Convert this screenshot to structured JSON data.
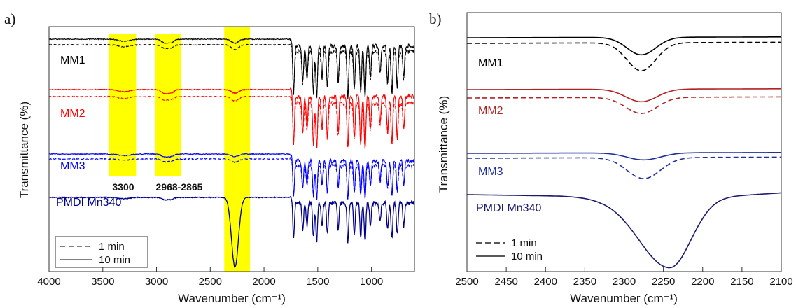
{
  "chart_data": [
    {
      "panel": "a)",
      "type": "line",
      "xlabel": "Wavenumber (cm⁻¹)",
      "ylabel": "Transmittance (%)",
      "xlim": [
        4000,
        600
      ],
      "x_reversed": true,
      "xticks": [
        4000,
        3500,
        3000,
        2500,
        2000,
        1500,
        1000
      ],
      "y_ticks_shown": false,
      "highlight_bands": [
        {
          "range": [
            3440,
            3190
          ],
          "label": "3300",
          "color": "#ffff00"
        },
        {
          "range": [
            3010,
            2770
          ],
          "label": "2968-2865",
          "color": "#ffff00"
        },
        {
          "range": [
            2370,
            2130
          ],
          "label": "",
          "color": "#ffff00"
        }
      ],
      "legend": {
        "position": "bottom-left",
        "entries": [
          {
            "label": "1 min",
            "style": "dashed"
          },
          {
            "label": "10 min",
            "style": "solid"
          }
        ]
      },
      "series": [
        {
          "name": "MM1",
          "color": "#000000",
          "offset": 0.85
        },
        {
          "name": "MM2",
          "color": "#ff0000",
          "offset": 0.6
        },
        {
          "name": "MM3",
          "color": "#0000ff",
          "offset": 0.35
        },
        {
          "name": "PMDI Mn340",
          "color": "#00008b",
          "offset": 0.1
        }
      ]
    },
    {
      "panel": "b)",
      "type": "line",
      "xlabel": "Wavenumber (cm⁻¹)",
      "ylabel": "Transmittance (%)",
      "xlim": [
        2500,
        2100
      ],
      "x_reversed": true,
      "xticks": [
        2500,
        2450,
        2400,
        2350,
        2300,
        2250,
        2200,
        2150,
        2100
      ],
      "y_ticks_shown": false,
      "legend": {
        "position": "bottom-left",
        "entries": [
          {
            "label": "1 min",
            "style": "dashed"
          },
          {
            "label": "10 min",
            "style": "solid"
          }
        ]
      },
      "series": [
        {
          "name": "MM1",
          "color": "#000000"
        },
        {
          "name": "MM2",
          "color": "#b22222"
        },
        {
          "name": "MM3",
          "color": "#1f2f9a"
        },
        {
          "name": "PMDI Mn340",
          "color": "#1a1a6e"
        }
      ]
    }
  ]
}
